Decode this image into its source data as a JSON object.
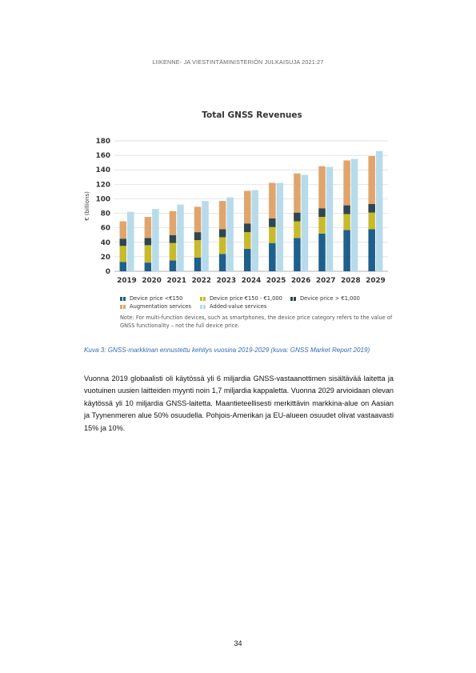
{
  "header": {
    "text": "LIIKENNE- JA VIESTINTÄMINISTERIÖN JULKAISUJA 2021:27"
  },
  "figure": {
    "title": "Total GNSS Revenues",
    "legend": [
      {
        "label": "Device price <€150",
        "color": "#1f5f8b"
      },
      {
        "label": "Device price €150 - €1,000",
        "color": "#c8ba2c"
      },
      {
        "label": "Device price > €1,000",
        "color": "#2e4750"
      },
      {
        "label": "Augmentation services",
        "color": "#e0a56c"
      },
      {
        "label": "Added-value services",
        "color": "#b7dbeb"
      }
    ],
    "note": "Note: For multi-function devices, such as smartphones, the device price category refers to the value of GNSS functionality – not the full device price."
  },
  "chart_data": {
    "type": "bar",
    "title": "Total GNSS Revenues",
    "xlabel": "",
    "ylabel": "€ (billions)",
    "ylim": [
      0,
      180
    ],
    "yticks": [
      0,
      20,
      40,
      60,
      80,
      100,
      120,
      140,
      160,
      180
    ],
    "categories": [
      "2019",
      "2020",
      "2021",
      "2022",
      "2023",
      "2024",
      "2025",
      "2026",
      "2027",
      "2028",
      "2029"
    ],
    "grid": true,
    "stacked_series": [
      {
        "name": "Device price <€150",
        "values": [
          13,
          12,
          15,
          19,
          24,
          31,
          39,
          46,
          52,
          57,
          58
        ]
      },
      {
        "name": "Device price €150 - €1,000",
        "values": [
          22,
          24,
          24,
          24,
          23,
          23,
          22,
          23,
          23,
          22,
          23
        ]
      },
      {
        "name": "Device price > €1,000",
        "values": [
          10,
          10,
          11,
          11,
          11,
          12,
          12,
          12,
          12,
          12,
          12
        ]
      },
      {
        "name": "Augmentation services",
        "values": [
          24,
          29,
          33,
          35,
          39,
          45,
          49,
          54,
          58,
          62,
          66
        ]
      }
    ],
    "side_series": {
      "name": "Added-value services",
      "values": [
        82,
        86,
        92,
        97,
        102,
        112,
        122,
        133,
        144,
        155,
        166
      ]
    }
  },
  "caption": "Kuva 3: GNSS-markkinan ennustettu kehitys vuosina 2019-2029 (kuva: GNSS Market Report 2019)",
  "body": "Vuonna 2019 globaalisti oli käytössä yli 6 miljardia GNSS-vastaanottimen sisältävää laitetta ja vuotuinen uusien laitteiden myynti noin 1,7 miljardia kappaletta. Vuonna 2029 arvioidaan olevan käytössä yli 10 miljardia GNSS-laitetta. Maantieteellisesti merkittävin markkina-alue on Aasian ja Tyynenmeren alue 50% osuudella. Pohjois-Amerikan ja EU-alueen osuudet olivat vastaavasti 15% ja 10%.",
  "page_number": "34"
}
